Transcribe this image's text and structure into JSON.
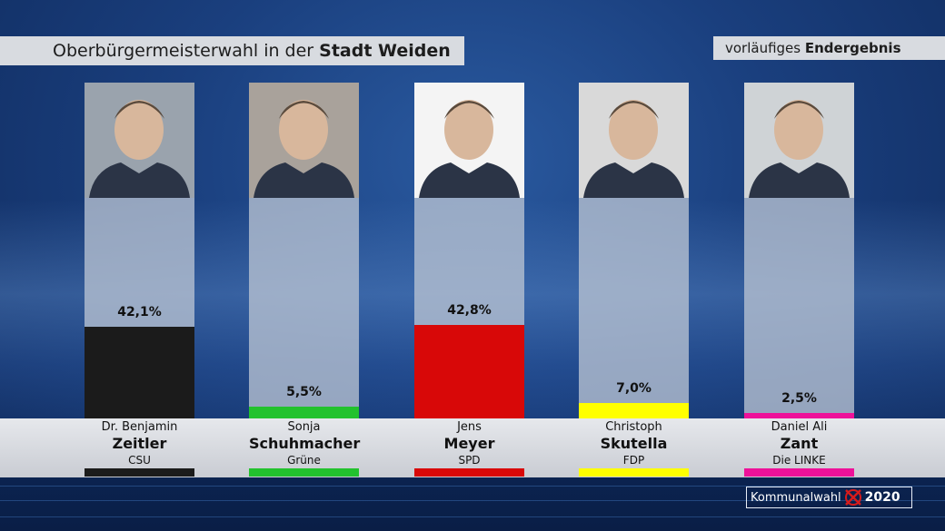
{
  "header": {
    "title_prefix": "Oberbürgermeisterwahl in der ",
    "title_bold": "Stadt Weiden",
    "status_prefix": "vorläufiges ",
    "status_bold": "Endergebnis"
  },
  "footer": {
    "event": "Kommunalwahl",
    "year": "2020"
  },
  "chart_data": {
    "type": "bar",
    "categories": [
      "Zeitler",
      "Schuhmacher",
      "Meyer",
      "Skutella",
      "Zant"
    ],
    "values": [
      42.1,
      5.5,
      42.8,
      7.0,
      2.5
    ],
    "labels": [
      "42,1%",
      "5,5%",
      "42,8%",
      "7,0%",
      "2,5%"
    ],
    "ylim": [
      0,
      100
    ],
    "unit": "%",
    "candidates": [
      {
        "first": "Dr. Benjamin",
        "last": "Zeitler",
        "party": "CSU",
        "color": "#1b1b1b",
        "value": 42.1,
        "label": "42,1%",
        "photo_bg": "#9aa3ad"
      },
      {
        "first": "Sonja",
        "last": "Schuhmacher",
        "party": "Grüne",
        "color": "#22c22e",
        "value": 5.5,
        "label": "5,5%",
        "photo_bg": "#a9a29b"
      },
      {
        "first": "Jens",
        "last": "Meyer",
        "party": "SPD",
        "color": "#d80808",
        "value": 42.8,
        "label": "42,8%",
        "photo_bg": "#f4f4f4"
      },
      {
        "first": "Christoph",
        "last": "Skutella",
        "party": "FDP",
        "color": "#ffff00",
        "value": 7.0,
        "label": "7,0%",
        "photo_bg": "#d9d9d9"
      },
      {
        "first": "Daniel Ali",
        "last": "Zant",
        "party": "Die LINKE",
        "color": "#ee1199",
        "value": 2.5,
        "label": "2,5%",
        "photo_bg": "#cfd3d6"
      }
    ]
  }
}
